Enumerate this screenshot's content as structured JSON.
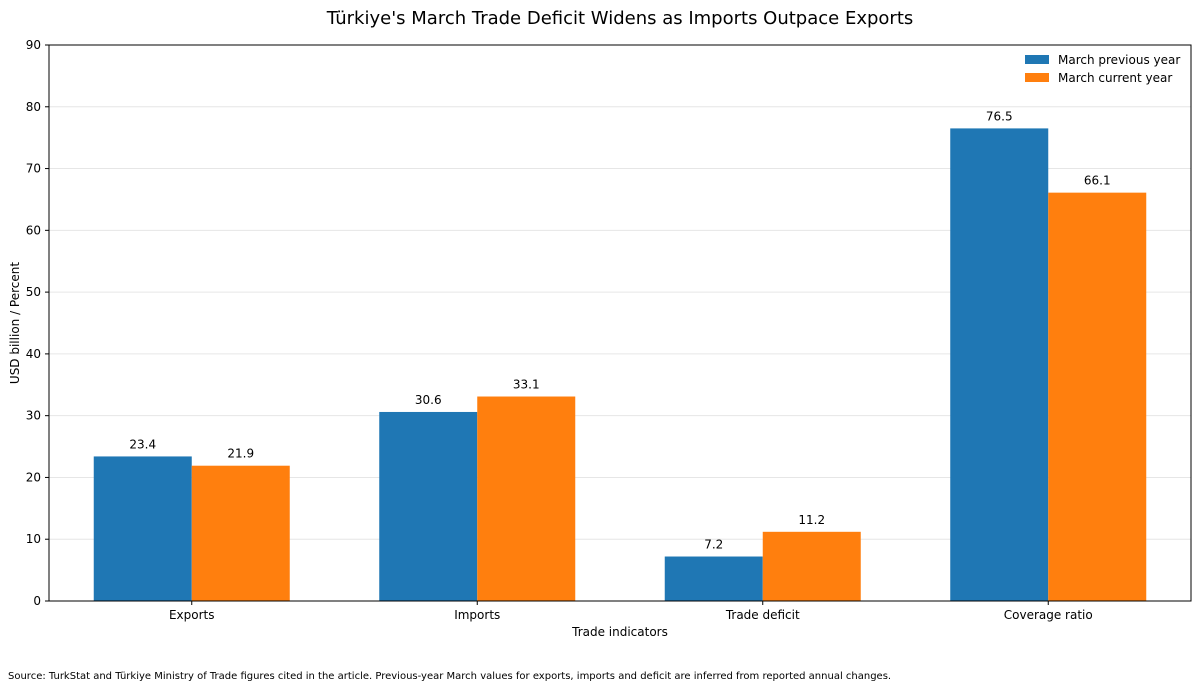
{
  "chart_data": {
    "type": "bar",
    "title": "Türkiye's March Trade Deficit Widens as Imports Outpace Exports",
    "xlabel": "Trade indicators",
    "ylabel": "USD billion / Percent",
    "categories": [
      "Exports",
      "Imports",
      "Trade deficit",
      "Coverage ratio"
    ],
    "series": [
      {
        "name": "March previous year",
        "color": "#1f77b4",
        "values": [
          23.4,
          30.6,
          7.2,
          76.5
        ],
        "labels": [
          "23.4",
          "30.6",
          "7.2",
          "76.5"
        ]
      },
      {
        "name": "March current year",
        "color": "#ff7f0e",
        "values": [
          21.9,
          33.1,
          11.2,
          66.1
        ],
        "labels": [
          "21.9",
          "33.1",
          "11.2",
          "66.1"
        ]
      }
    ],
    "ylim": [
      0,
      90
    ],
    "yticks": [
      0,
      10,
      20,
      30,
      40,
      50,
      60,
      70,
      80,
      90
    ],
    "ytick_labels": [
      "0",
      "10",
      "20",
      "30",
      "40",
      "50",
      "60",
      "70",
      "80",
      "90"
    ],
    "grid": true,
    "legend_position": "top-right",
    "source": "Source: TurkStat and Türkiye Ministry of Trade figures cited in the article. Previous-year March values for exports, imports and deficit are inferred from reported annual changes."
  }
}
